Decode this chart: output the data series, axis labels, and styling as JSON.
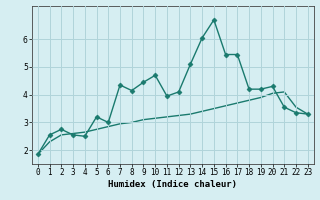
{
  "xlabel": "Humidex (Indice chaleur)",
  "ylabel": "",
  "bg_color": "#d6eef2",
  "grid_color": "#b0d4da",
  "line1_color": "#1a7a6e",
  "line2_color": "#1a7a6e",
  "x": [
    0,
    1,
    2,
    3,
    4,
    5,
    6,
    7,
    8,
    9,
    10,
    11,
    12,
    13,
    14,
    15,
    16,
    17,
    18,
    19,
    20,
    21,
    22,
    23
  ],
  "line1_y": [
    1.85,
    2.55,
    2.75,
    2.55,
    2.5,
    3.2,
    3.0,
    4.35,
    4.15,
    4.45,
    4.7,
    3.95,
    4.1,
    5.1,
    6.05,
    6.7,
    5.45,
    5.45,
    4.2,
    4.2,
    4.3,
    3.55,
    3.35,
    3.3
  ],
  "line2_y": [
    1.85,
    2.3,
    2.55,
    2.6,
    2.65,
    2.75,
    2.85,
    2.95,
    3.0,
    3.1,
    3.15,
    3.2,
    3.25,
    3.3,
    3.4,
    3.5,
    3.6,
    3.7,
    3.8,
    3.9,
    4.05,
    4.1,
    3.55,
    3.3
  ],
  "ylim": [
    1.5,
    7.2
  ],
  "xlim": [
    -0.5,
    23.5
  ],
  "yticks": [
    2,
    3,
    4,
    5,
    6
  ],
  "xticks": [
    0,
    1,
    2,
    3,
    4,
    5,
    6,
    7,
    8,
    9,
    10,
    11,
    12,
    13,
    14,
    15,
    16,
    17,
    18,
    19,
    20,
    21,
    22,
    23
  ],
  "marker": "D",
  "markersize": 2.5,
  "linewidth": 1.0,
  "label_fontsize": 6.5,
  "tick_fontsize": 5.5
}
